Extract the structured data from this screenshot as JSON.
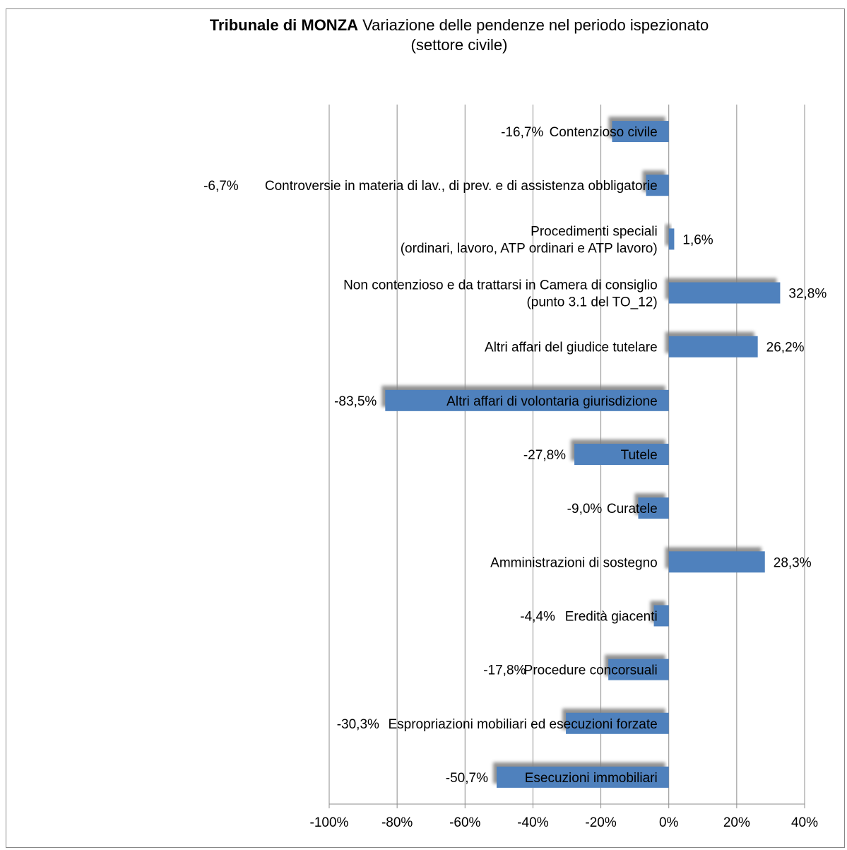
{
  "chart_data": {
    "type": "bar",
    "orientation": "horizontal",
    "title_bold": "Tribunale di MONZA",
    "title_rest": " Variazione delle pendenze nel periodo ispezionato",
    "subtitle": "(settore civile)",
    "xlabel": "",
    "ylabel": "",
    "xlim": [
      -100,
      40
    ],
    "x_ticks": [
      -100,
      -80,
      -60,
      -40,
      -20,
      0,
      20,
      40
    ],
    "x_tick_labels": [
      "-100%",
      "-80%",
      "-60%",
      "-40%",
      "-20%",
      "0%",
      "20%",
      "40%"
    ],
    "grid": "vertical",
    "legend": "none",
    "bar_color": "#4f81bd",
    "shadow_color": "#7f7f7f",
    "categories": [
      [
        "Contenzioso civile"
      ],
      [
        "Controversie in materia di lav., di prev. e di assistenza obbligatorie"
      ],
      [
        "Procedimenti speciali",
        "(ordinari, lavoro, ATP ordinari e ATP lavoro)"
      ],
      [
        "Non contenzioso e da trattarsi in Camera di consiglio",
        "(punto 3.1 del TO_12)"
      ],
      [
        "Altri affari del giudice tutelare"
      ],
      [
        "Altri affari di volontaria giurisdizione"
      ],
      [
        "Tutele"
      ],
      [
        "Curatele"
      ],
      [
        "Amministrazioni di sostegno"
      ],
      [
        "Eredità giacenti"
      ],
      [
        "Procedure concorsuali"
      ],
      [
        "Espropriazioni mobiliari ed esecuzioni forzate"
      ],
      [
        "Esecuzioni immobiliari"
      ]
    ],
    "values": [
      -16.7,
      -6.7,
      1.6,
      32.8,
      26.2,
      -83.5,
      -27.8,
      -9.0,
      28.3,
      -4.4,
      -17.8,
      -30.3,
      -50.7
    ],
    "data_labels": [
      "-16,7%",
      "-6,7%",
      "1,6%",
      "32,8%",
      "26,2%",
      "-83,5%",
      "-27,8%",
      "-9,0%",
      "28,3%",
      "-4,4%",
      "-17,8%",
      "-30,3%",
      "-50,7%"
    ]
  }
}
